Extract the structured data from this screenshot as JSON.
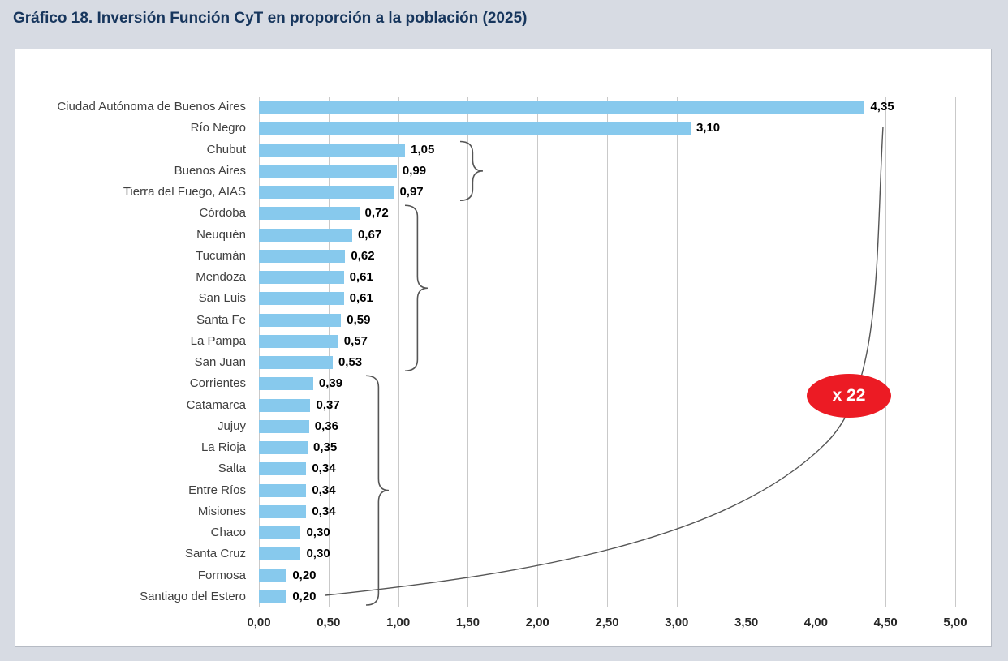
{
  "page": {
    "background": "#D7DBE3",
    "title": "Gráfico 18. Inversión Función CyT en proporción a la población (2025)"
  },
  "chart_data": {
    "type": "bar",
    "orientation": "horizontal",
    "title": "Gráfico 18. Inversión Función CyT en proporción a la población (2025)",
    "xlabel": "",
    "ylabel": "",
    "xlim": [
      0,
      5
    ],
    "grid": true,
    "legend": "none",
    "bar_color": "#87C9ED",
    "x_tick_labels": [
      "0,00",
      "0,50",
      "1,00",
      "1,50",
      "2,00",
      "2,50",
      "3,00",
      "3,50",
      "4,00",
      "4,50",
      "5,00"
    ],
    "categories": [
      "Ciudad Autónoma de Buenos Aires",
      "Río Negro",
      "Chubut",
      "Buenos Aires",
      "Tierra del Fuego, AIAS",
      "Córdoba",
      "Neuquén",
      "Tucumán",
      "Mendoza",
      "San Luis",
      "Santa Fe",
      "La Pampa",
      "San Juan",
      "Corrientes",
      "Catamarca",
      "Jujuy",
      "La Rioja",
      "Salta",
      "Entre Ríos",
      "Misiones",
      "Chaco",
      "Santa Cruz",
      "Formosa",
      "Santiago del Estero"
    ],
    "values": [
      4.35,
      3.1,
      1.05,
      0.99,
      0.97,
      0.72,
      0.67,
      0.62,
      0.61,
      0.61,
      0.59,
      0.57,
      0.53,
      0.39,
      0.37,
      0.36,
      0.35,
      0.34,
      0.34,
      0.34,
      0.3,
      0.3,
      0.2,
      0.2
    ],
    "value_labels": [
      "4,35",
      "3,10",
      "1,05",
      "0,99",
      "0,97",
      "0,72",
      "0,67",
      "0,62",
      "0,61",
      "0,61",
      "0,59",
      "0,57",
      "0,53",
      "0,39",
      "0,37",
      "0,36",
      "0,35",
      "0,34",
      "0,34",
      "0,34",
      "0,30",
      "0,30",
      "0,20",
      "0,20"
    ],
    "annotation": {
      "label": "x 22",
      "fill": "#EC1B24",
      "text_color": "#FFFFFF"
    },
    "brace_groups": [
      {
        "start": 2,
        "end": 4
      },
      {
        "start": 5,
        "end": 12
      },
      {
        "start": 13,
        "end": 23
      }
    ]
  }
}
